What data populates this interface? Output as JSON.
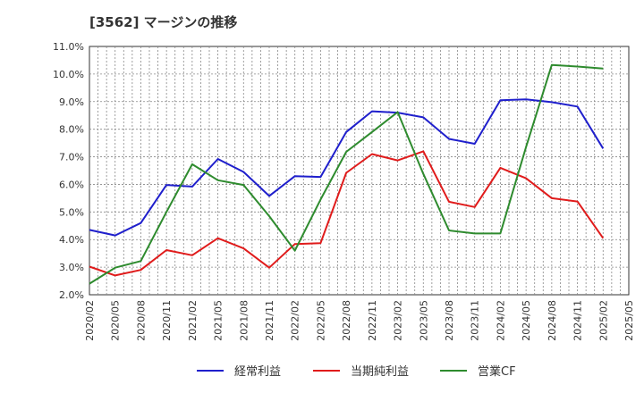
{
  "chart_data": {
    "type": "line",
    "title": "[3562]  マージンの推移",
    "xlabel": "",
    "ylabel": "",
    "ylim": [
      2.0,
      11.0
    ],
    "y_ticks": [
      "2.0%",
      "3.0%",
      "4.0%",
      "5.0%",
      "6.0%",
      "7.0%",
      "8.0%",
      "9.0%",
      "10.0%",
      "11.0%"
    ],
    "x_ticks": [
      "2020/02",
      "2020/05",
      "2020/08",
      "2020/11",
      "2021/02",
      "2021/05",
      "2021/08",
      "2021/11",
      "2022/02",
      "2022/05",
      "2022/08",
      "2022/11",
      "2023/02",
      "2023/05",
      "2023/08",
      "2023/11",
      "2024/02",
      "2024/05",
      "2024/08",
      "2024/11",
      "2025/02",
      "2025/05"
    ],
    "x": [
      "2020/02",
      "2020/05",
      "2020/08",
      "2020/11",
      "2021/02",
      "2021/05",
      "2021/08",
      "2021/11",
      "2022/02",
      "2022/05",
      "2022/08",
      "2022/11",
      "2023/02",
      "2023/05",
      "2023/08",
      "2023/11",
      "2024/02",
      "2024/05",
      "2024/08",
      "2024/11",
      "2025/02"
    ],
    "grid": true,
    "legend_position": "bottom",
    "series": [
      {
        "name": "経常利益",
        "color": "#1f1fcc",
        "values": [
          4.35,
          4.15,
          4.6,
          5.98,
          5.92,
          6.92,
          6.45,
          5.58,
          6.3,
          6.27,
          7.9,
          8.65,
          8.6,
          8.43,
          7.65,
          7.47,
          9.05,
          9.08,
          8.98,
          8.82,
          7.3
        ]
      },
      {
        "name": "当期純利益",
        "color": "#e01b1b",
        "values": [
          3.02,
          2.7,
          2.9,
          3.62,
          3.43,
          4.05,
          3.68,
          2.98,
          3.84,
          3.87,
          6.42,
          7.1,
          6.87,
          7.2,
          5.37,
          5.18,
          6.6,
          6.22,
          5.5,
          5.38,
          4.05
        ]
      },
      {
        "name": "営業CF",
        "color": "#2e8b2e",
        "values": [
          2.4,
          2.98,
          3.22,
          5.0,
          6.73,
          6.15,
          5.98,
          4.85,
          3.6,
          5.45,
          7.18,
          7.9,
          8.62,
          6.38,
          4.33,
          4.22,
          4.22,
          7.35,
          10.33,
          10.27,
          10.2
        ]
      }
    ]
  }
}
